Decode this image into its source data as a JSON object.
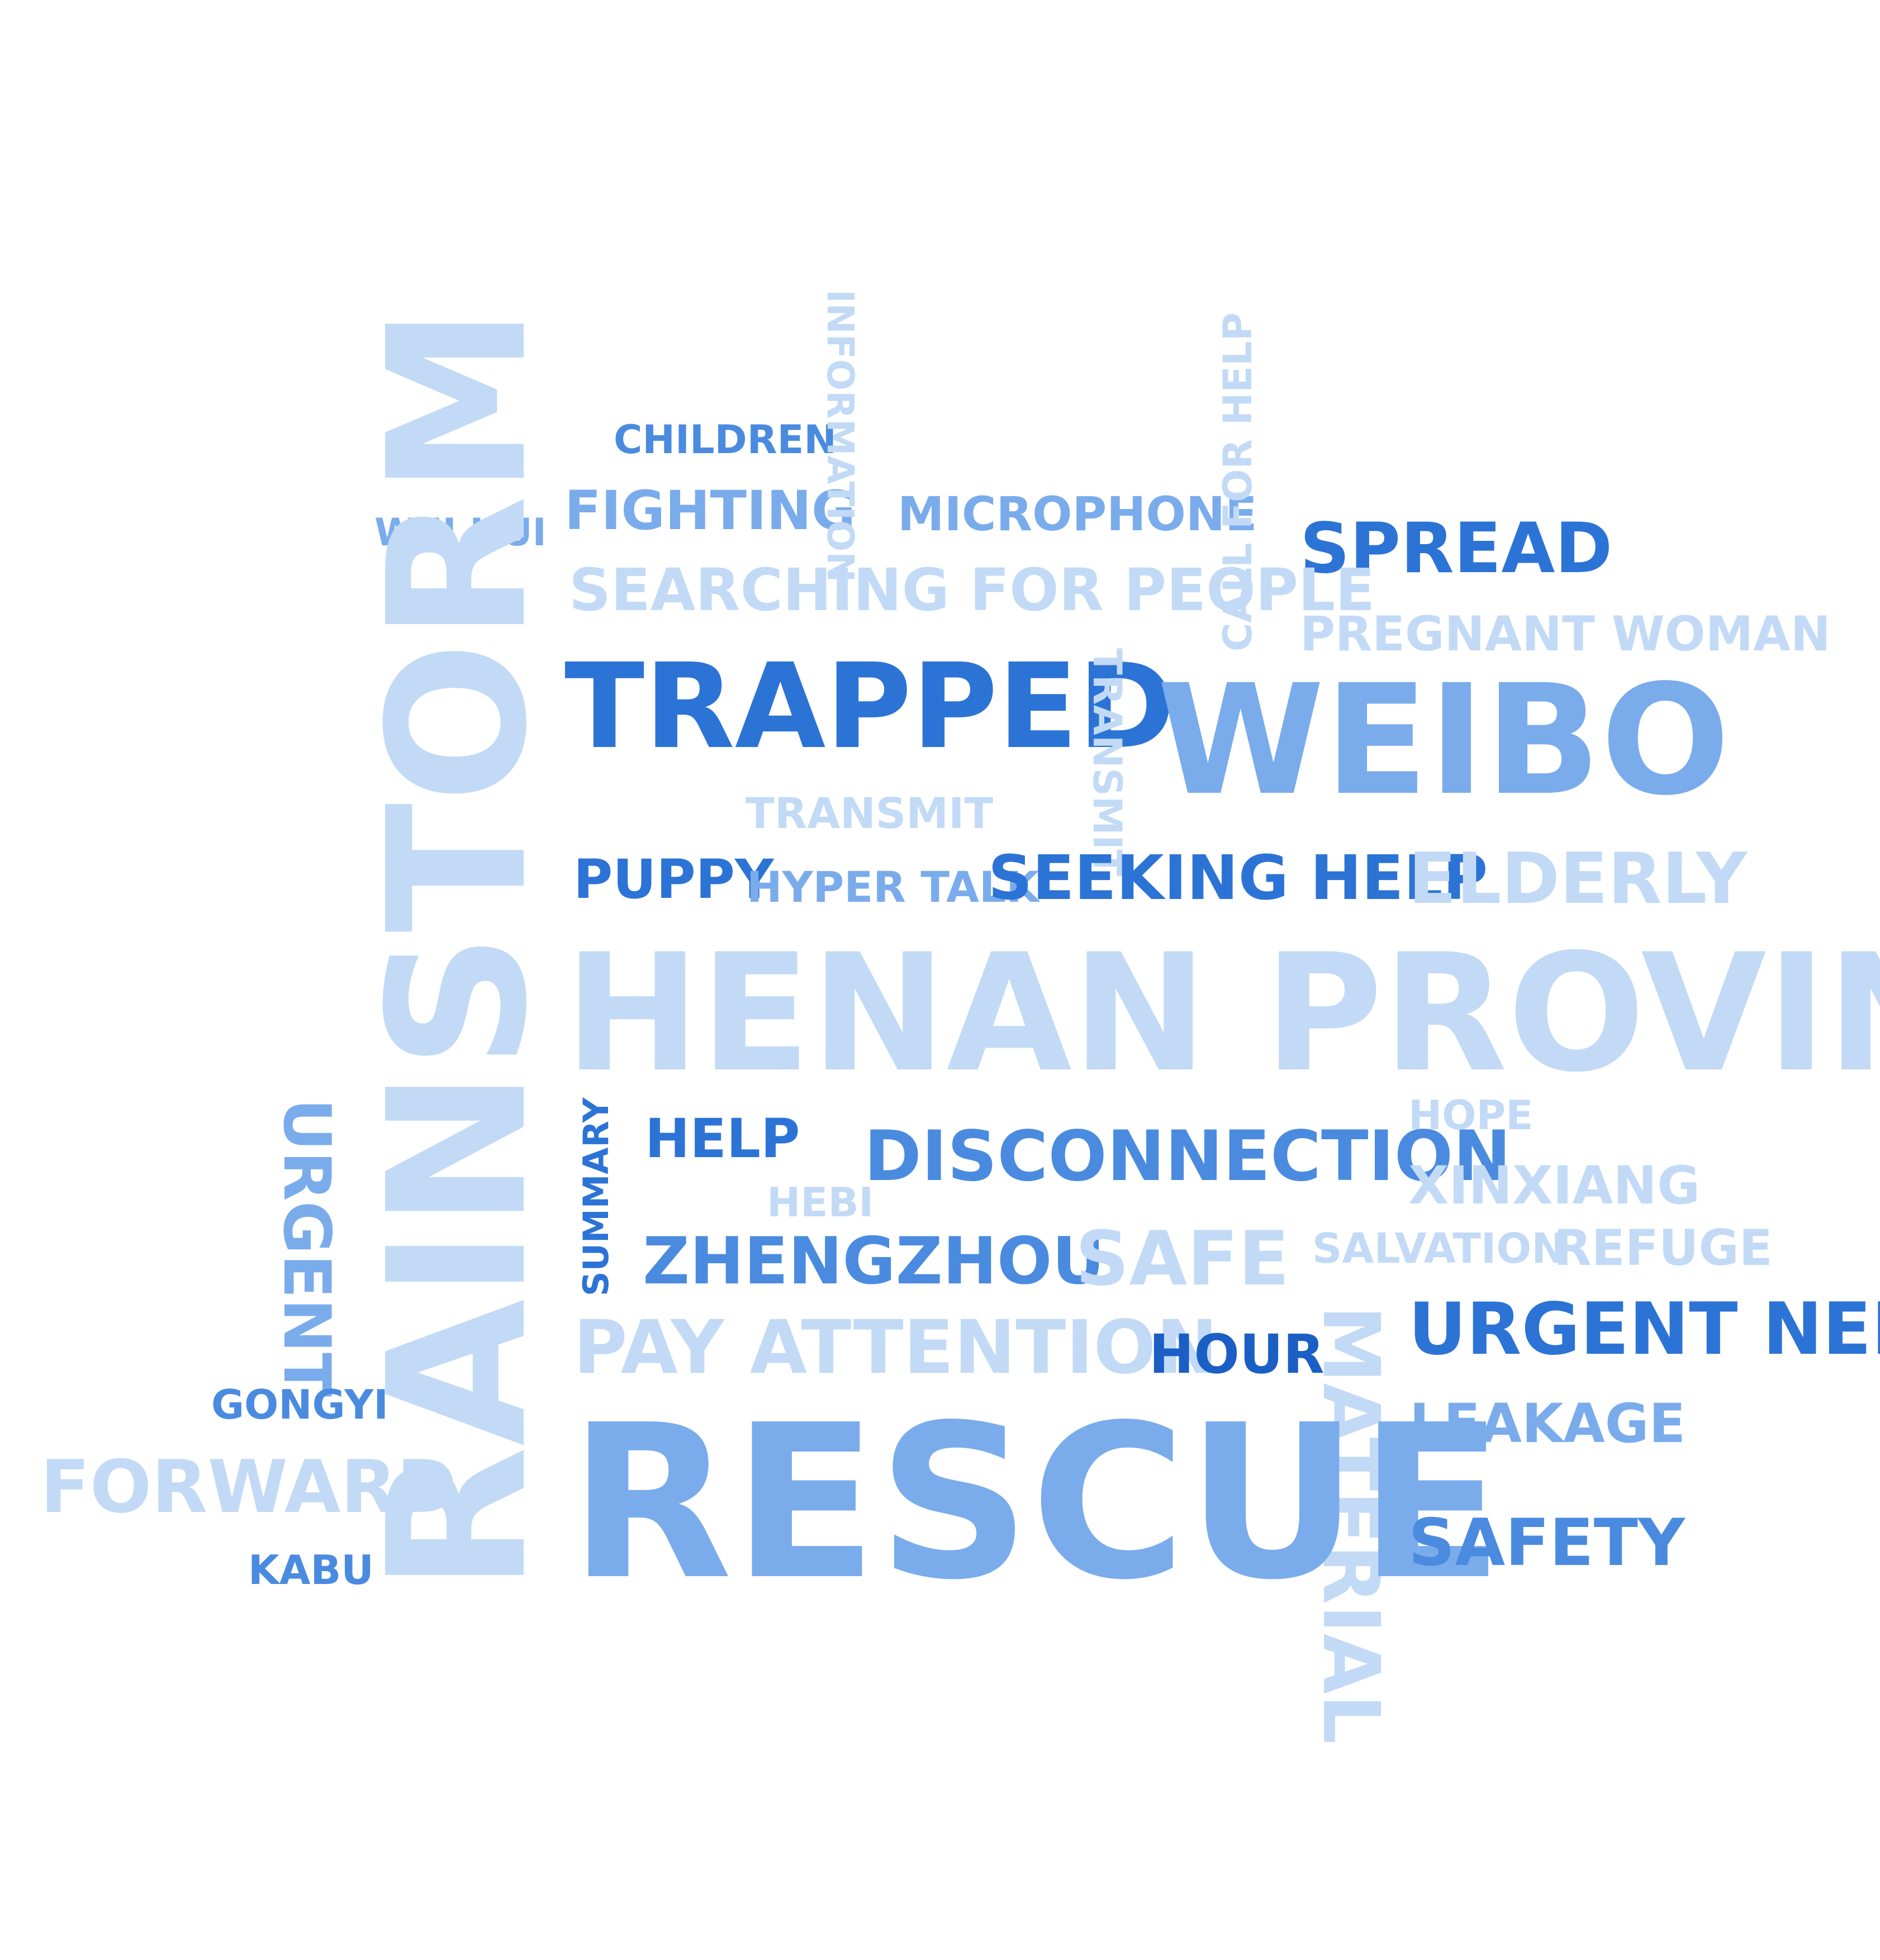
{
  "word_cloud": {
    "words": {
      "rainstorm": "RAINSTORM",
      "henan_province": "HENAN PROVINCE",
      "rescue": "RESCUE",
      "weibo": "WEIBO",
      "trapped": "TRAPPED",
      "spread": "SPREAD",
      "children": "CHILDREN",
      "fighting": "FIGHTING",
      "information": "INFORMATION",
      "microphone": "MICROPHONE",
      "wei_hui": "WEI HUI",
      "call_for_help": "CALL FOR HELP",
      "searching_for_people": "SEARCHING FOR PEOPLE",
      "pregnant_woman": "PREGNANT WOMAN",
      "transmit_vertical": "TRANSMIT",
      "transmit": "TRANSMIT",
      "puppy": "PUPPY",
      "hyper_talk": "HYPER TALK",
      "seeking_help": "SEEKING HELP",
      "elderly": "ELDERLY",
      "urgent": "URGENT",
      "summary": "SUMMARY",
      "help": "HELP",
      "disconnection": "DISCONNECTION",
      "hope": "HOPE",
      "hebi": "HEBI",
      "xinxiang": "XINXIANG",
      "zhengzhou": "ZHENGZHOU",
      "safe": "SAFE",
      "salvation": "SALVATION",
      "refuge": "REFUGE",
      "pay_attention": "PAY ATTENTION",
      "hour": "HOUR",
      "material": "MATERIAL",
      "urgent_need": "URGENT NEED",
      "gongyi": "GONGYI",
      "leakage": "LEAKAGE",
      "forward": "FORWARD",
      "safety": "SAFETY",
      "kabu": "KABU"
    }
  }
}
